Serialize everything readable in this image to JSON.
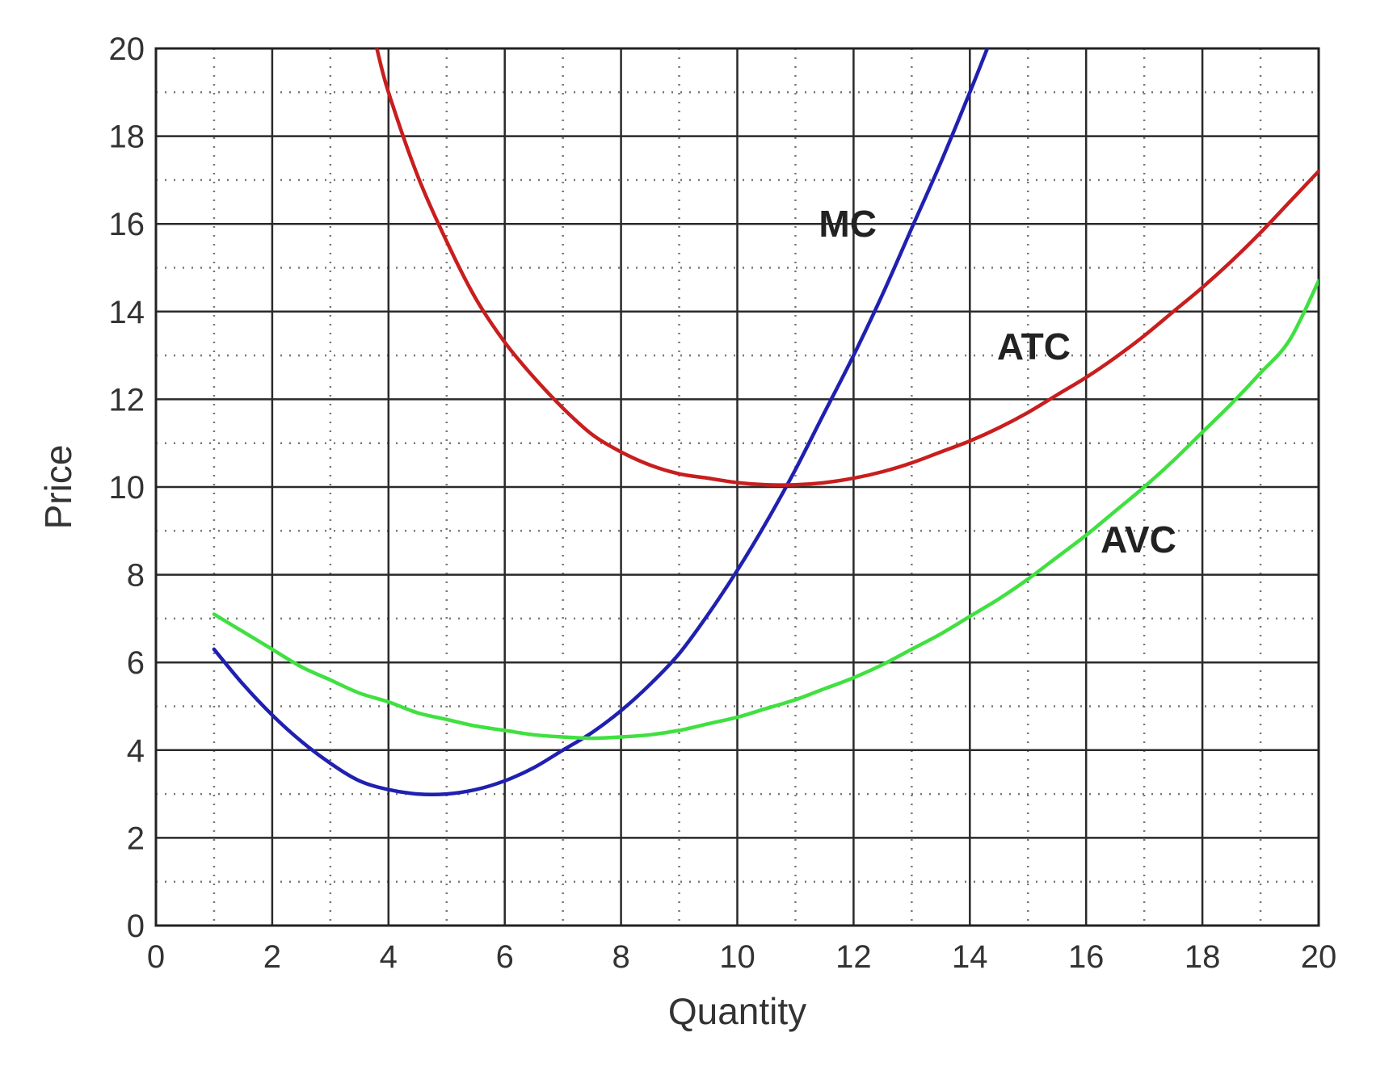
{
  "chart_data": {
    "type": "line",
    "title": "",
    "xlabel": "Quantity",
    "ylabel": "Price",
    "xlim": [
      0,
      20
    ],
    "ylim": [
      0,
      20
    ],
    "xticks": [
      0,
      2,
      4,
      6,
      8,
      10,
      12,
      14,
      16,
      18,
      20
    ],
    "yticks": [
      0,
      2,
      4,
      6,
      8,
      10,
      12,
      14,
      16,
      18,
      20
    ],
    "x_tick_labels": [
      "0",
      "2",
      "4",
      "6",
      "8",
      "10",
      "12",
      "14",
      "16",
      "18",
      "20"
    ],
    "y_tick_labels": [
      "0",
      "2",
      "4",
      "6",
      "8",
      "10",
      "12",
      "14",
      "16",
      "18",
      "20"
    ],
    "grid": {
      "major": true,
      "minor_dotted": true
    },
    "legend": "none",
    "series": [
      {
        "name": "MC",
        "color": "#2020b0",
        "x": [
          1,
          1.5,
          2,
          2.5,
          3,
          3.5,
          4,
          4.5,
          5,
          5.5,
          6,
          6.5,
          7,
          7.5,
          8,
          8.5,
          9,
          9.5,
          10,
          10.5,
          11,
          11.5,
          12,
          12.5,
          13,
          13.5,
          14,
          14.3
        ],
        "y": [
          6.3,
          5.5,
          4.8,
          4.2,
          3.7,
          3.3,
          3.1,
          3.0,
          3.0,
          3.1,
          3.3,
          3.6,
          4.0,
          4.4,
          4.9,
          5.5,
          6.2,
          7.1,
          8.1,
          9.2,
          10.4,
          11.7,
          13.0,
          14.4,
          15.9,
          17.4,
          19.0,
          20.0
        ]
      },
      {
        "name": "ATC",
        "color": "#c81e1e",
        "x": [
          3.8,
          4,
          4.5,
          5,
          5.5,
          6,
          6.5,
          7,
          7.5,
          8,
          8.5,
          9,
          9.5,
          10,
          10.5,
          11,
          11.5,
          12,
          12.5,
          13,
          13.5,
          14,
          14.5,
          15,
          15.5,
          16,
          16.5,
          17,
          17.5,
          18,
          18.5,
          19,
          19.5,
          20
        ],
        "y": [
          20.0,
          19.0,
          17.1,
          15.6,
          14.3,
          13.3,
          12.5,
          11.8,
          11.2,
          10.8,
          10.5,
          10.3,
          10.2,
          10.1,
          10.05,
          10.05,
          10.1,
          10.2,
          10.35,
          10.55,
          10.8,
          11.05,
          11.35,
          11.7,
          12.1,
          12.5,
          12.95,
          13.45,
          14.0,
          14.55,
          15.15,
          15.8,
          16.5,
          17.2
        ]
      },
      {
        "name": "AVC",
        "color": "#40e040",
        "x": [
          1,
          1.5,
          2,
          2.5,
          3,
          3.5,
          4,
          4.5,
          5,
          5.5,
          6,
          6.5,
          7,
          7.5,
          8,
          8.5,
          9,
          9.5,
          10,
          10.5,
          11,
          11.5,
          12,
          12.5,
          13,
          13.5,
          14,
          14.5,
          15,
          15.5,
          16,
          16.5,
          17,
          17.5,
          18,
          18.5,
          19,
          19.5,
          20
        ],
        "y": [
          7.1,
          6.7,
          6.3,
          5.9,
          5.6,
          5.3,
          5.1,
          4.85,
          4.7,
          4.55,
          4.45,
          4.35,
          4.3,
          4.27,
          4.3,
          4.35,
          4.45,
          4.6,
          4.75,
          4.95,
          5.15,
          5.4,
          5.65,
          5.95,
          6.3,
          6.65,
          7.05,
          7.45,
          7.9,
          8.4,
          8.9,
          9.45,
          10.0,
          10.6,
          11.25,
          11.9,
          12.6,
          13.35,
          14.7
        ]
      }
    ],
    "annotations": [
      {
        "text": "MC",
        "x": 11.9,
        "y": 16.0
      },
      {
        "text": "ATC",
        "x": 15.1,
        "y": 13.2
      },
      {
        "text": "AVC",
        "x": 16.9,
        "y": 8.8
      }
    ]
  }
}
